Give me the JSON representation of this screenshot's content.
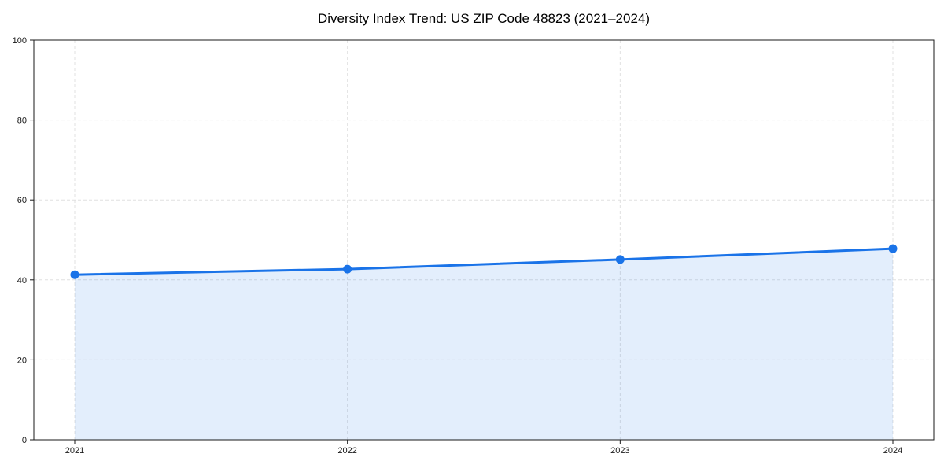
{
  "chart_data": {
    "type": "line",
    "title": "Diversity Index Trend: US ZIP Code 48823 (2021–2024)",
    "categories": [
      "2021",
      "2022",
      "2023",
      "2024"
    ],
    "series": [
      {
        "name": "Diversity Index",
        "values": [
          41.3,
          42.7,
          45.1,
          47.8
        ]
      }
    ],
    "xlabel": "",
    "ylabel": "",
    "ylim": [
      0,
      100
    ],
    "yticks": [
      0,
      20,
      40,
      60,
      80,
      100
    ],
    "grid": true,
    "grid_style": "dashed",
    "legend": "none",
    "area_fill": true,
    "markers": true,
    "colors": {
      "line": "#1a73e8",
      "marker": "#1a73e8",
      "fill": "rgba(26,115,232,0.12)",
      "grid": "#e0e0e0",
      "axis": "#1a1a1a",
      "tick_text": "#1a1a1a",
      "background": "#ffffff"
    }
  }
}
